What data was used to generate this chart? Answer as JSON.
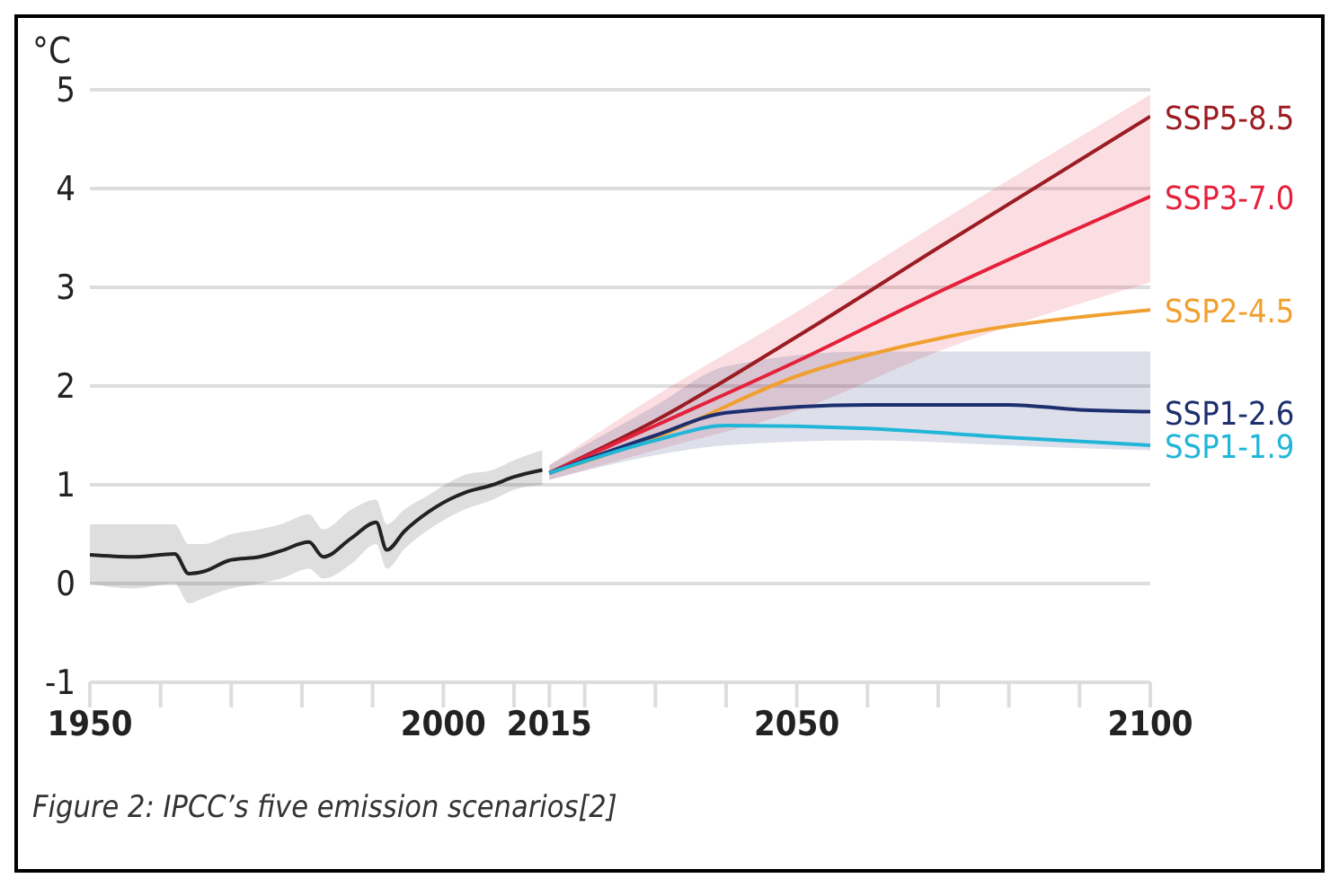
{
  "chart_data": {
    "type": "line",
    "ylabel": "°C",
    "annotations": [
      "Figure 2: IPCC’s five emission scenarios[2]"
    ],
    "xlim": [
      1950,
      2100
    ],
    "xticks": [
      1950,
      {
        "value": 1960,
        "label": null
      },
      {
        "value": 1970,
        "label": null
      },
      {
        "value": 1980,
        "label": null
      },
      {
        "value": 1990,
        "label": null
      },
      2000,
      {
        "value": 2010,
        "label": null
      },
      2015,
      {
        "value": 2020,
        "label": null
      },
      {
        "value": 2030,
        "label": null
      },
      {
        "value": 2040,
        "label": null
      },
      2050,
      {
        "value": 2060,
        "label": null
      },
      {
        "value": 2070,
        "label": null
      },
      {
        "value": 2080,
        "label": null
      },
      {
        "value": 2090,
        "label": null
      },
      2100
    ],
    "ylim": [
      -1,
      5
    ],
    "yticks": [
      -1,
      0,
      1,
      2,
      3,
      4,
      5
    ],
    "grid": "y",
    "marker": "none",
    "line_style": "solid",
    "series": [
      {
        "color": "#222222",
        "x": [
          1950,
          1956,
          1962,
          1964,
          1966,
          1970,
          1974,
          1977,
          1981,
          1983,
          1987,
          1990.5,
          1992,
          1994.5,
          1998,
          2003,
          2007,
          2010,
          2014
        ],
        "values": [
          0.29,
          0.27,
          0.3,
          0.1,
          0.12,
          0.24,
          0.27,
          0.33,
          0.42,
          0.27,
          0.46,
          0.62,
          0.34,
          0.53,
          0.73,
          0.92,
          1.0,
          1.08,
          1.15
        ],
        "lower": [
          0.0,
          -0.05,
          0.0,
          -0.2,
          -0.15,
          -0.05,
          0.0,
          0.05,
          0.15,
          0.05,
          0.2,
          0.4,
          0.15,
          0.35,
          0.55,
          0.75,
          0.85,
          0.95,
          1.0
        ],
        "upper": [
          0.6,
          0.6,
          0.6,
          0.4,
          0.4,
          0.5,
          0.55,
          0.6,
          0.7,
          0.55,
          0.75,
          0.85,
          0.6,
          0.75,
          0.9,
          1.1,
          1.15,
          1.25,
          1.35
        ]
      },
      {
        "name": "SSP5-8.5",
        "color": "#9b1c22",
        "x": [
          2015,
          2030,
          2050,
          2070,
          2100
        ],
        "values": [
          1.12,
          1.65,
          2.5,
          3.4,
          4.73
        ]
      },
      {
        "name": "SSP3-7.0",
        "color": "#e3213b",
        "x": [
          2015,
          2030,
          2050,
          2070,
          2100
        ],
        "values": [
          1.12,
          1.6,
          2.25,
          2.95,
          3.92
        ],
        "lower": [
          1.05,
          1.35,
          1.75,
          2.35,
          3.05
        ],
        "upper": [
          1.2,
          1.9,
          2.75,
          3.65,
          4.95
        ]
      },
      {
        "name": "SSP2-4.5",
        "color": "#f0a030",
        "x": [
          2015,
          2030,
          2050,
          2070,
          2100
        ],
        "values": [
          1.12,
          1.48,
          2.1,
          2.48,
          2.77
        ]
      },
      {
        "name": "SSP1-2.6",
        "color": "#1d2f6f",
        "x": [
          2015,
          2030,
          2040,
          2060,
          2080,
          2090,
          2100
        ],
        "values": [
          1.12,
          1.5,
          1.73,
          1.81,
          1.81,
          1.76,
          1.74
        ],
        "lower": [
          1.05,
          1.3,
          1.4,
          1.45,
          1.4,
          1.37,
          1.35
        ],
        "upper": [
          1.2,
          1.8,
          2.2,
          2.35,
          2.35,
          2.35,
          2.35
        ]
      },
      {
        "name": "SSP1-1.9",
        "color": "#21b6d8",
        "x": [
          2015,
          2030,
          2040,
          2060,
          2080,
          2100
        ],
        "values": [
          1.12,
          1.45,
          1.6,
          1.57,
          1.48,
          1.4
        ]
      }
    ]
  }
}
